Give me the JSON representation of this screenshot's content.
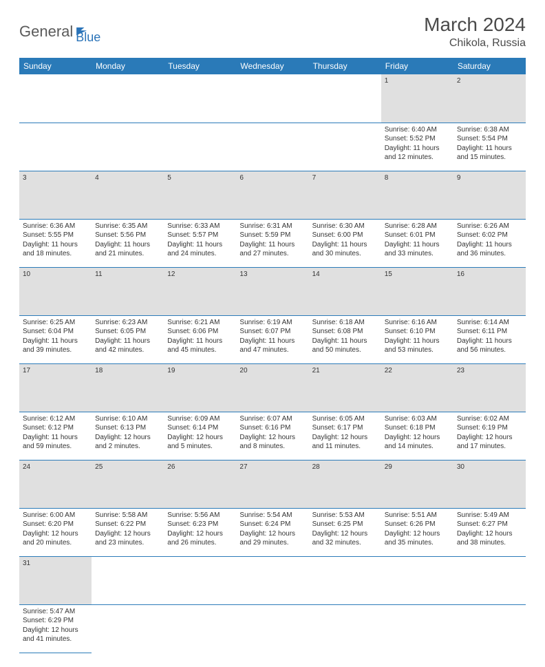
{
  "logo": {
    "text1": "General",
    "text2": "Blue",
    "iconColor": "#2a73b8"
  },
  "header": {
    "title": "March 2024",
    "location": "Chikola, Russia"
  },
  "colors": {
    "headerBg": "#2a7ab8",
    "headerText": "#ffffff",
    "dayNumBg": "#e0e0e0",
    "bodyText": "#333333",
    "ruleColor": "#2a7ab8"
  },
  "weekdays": [
    "Sunday",
    "Monday",
    "Tuesday",
    "Wednesday",
    "Thursday",
    "Friday",
    "Saturday"
  ],
  "weeks": [
    [
      null,
      null,
      null,
      null,
      null,
      {
        "n": "1",
        "sunrise": "Sunrise: 6:40 AM",
        "sunset": "Sunset: 5:52 PM",
        "day1": "Daylight: 11 hours",
        "day2": "and 12 minutes."
      },
      {
        "n": "2",
        "sunrise": "Sunrise: 6:38 AM",
        "sunset": "Sunset: 5:54 PM",
        "day1": "Daylight: 11 hours",
        "day2": "and 15 minutes."
      }
    ],
    [
      {
        "n": "3",
        "sunrise": "Sunrise: 6:36 AM",
        "sunset": "Sunset: 5:55 PM",
        "day1": "Daylight: 11 hours",
        "day2": "and 18 minutes."
      },
      {
        "n": "4",
        "sunrise": "Sunrise: 6:35 AM",
        "sunset": "Sunset: 5:56 PM",
        "day1": "Daylight: 11 hours",
        "day2": "and 21 minutes."
      },
      {
        "n": "5",
        "sunrise": "Sunrise: 6:33 AM",
        "sunset": "Sunset: 5:57 PM",
        "day1": "Daylight: 11 hours",
        "day2": "and 24 minutes."
      },
      {
        "n": "6",
        "sunrise": "Sunrise: 6:31 AM",
        "sunset": "Sunset: 5:59 PM",
        "day1": "Daylight: 11 hours",
        "day2": "and 27 minutes."
      },
      {
        "n": "7",
        "sunrise": "Sunrise: 6:30 AM",
        "sunset": "Sunset: 6:00 PM",
        "day1": "Daylight: 11 hours",
        "day2": "and 30 minutes."
      },
      {
        "n": "8",
        "sunrise": "Sunrise: 6:28 AM",
        "sunset": "Sunset: 6:01 PM",
        "day1": "Daylight: 11 hours",
        "day2": "and 33 minutes."
      },
      {
        "n": "9",
        "sunrise": "Sunrise: 6:26 AM",
        "sunset": "Sunset: 6:02 PM",
        "day1": "Daylight: 11 hours",
        "day2": "and 36 minutes."
      }
    ],
    [
      {
        "n": "10",
        "sunrise": "Sunrise: 6:25 AM",
        "sunset": "Sunset: 6:04 PM",
        "day1": "Daylight: 11 hours",
        "day2": "and 39 minutes."
      },
      {
        "n": "11",
        "sunrise": "Sunrise: 6:23 AM",
        "sunset": "Sunset: 6:05 PM",
        "day1": "Daylight: 11 hours",
        "day2": "and 42 minutes."
      },
      {
        "n": "12",
        "sunrise": "Sunrise: 6:21 AM",
        "sunset": "Sunset: 6:06 PM",
        "day1": "Daylight: 11 hours",
        "day2": "and 45 minutes."
      },
      {
        "n": "13",
        "sunrise": "Sunrise: 6:19 AM",
        "sunset": "Sunset: 6:07 PM",
        "day1": "Daylight: 11 hours",
        "day2": "and 47 minutes."
      },
      {
        "n": "14",
        "sunrise": "Sunrise: 6:18 AM",
        "sunset": "Sunset: 6:08 PM",
        "day1": "Daylight: 11 hours",
        "day2": "and 50 minutes."
      },
      {
        "n": "15",
        "sunrise": "Sunrise: 6:16 AM",
        "sunset": "Sunset: 6:10 PM",
        "day1": "Daylight: 11 hours",
        "day2": "and 53 minutes."
      },
      {
        "n": "16",
        "sunrise": "Sunrise: 6:14 AM",
        "sunset": "Sunset: 6:11 PM",
        "day1": "Daylight: 11 hours",
        "day2": "and 56 minutes."
      }
    ],
    [
      {
        "n": "17",
        "sunrise": "Sunrise: 6:12 AM",
        "sunset": "Sunset: 6:12 PM",
        "day1": "Daylight: 11 hours",
        "day2": "and 59 minutes."
      },
      {
        "n": "18",
        "sunrise": "Sunrise: 6:10 AM",
        "sunset": "Sunset: 6:13 PM",
        "day1": "Daylight: 12 hours",
        "day2": "and 2 minutes."
      },
      {
        "n": "19",
        "sunrise": "Sunrise: 6:09 AM",
        "sunset": "Sunset: 6:14 PM",
        "day1": "Daylight: 12 hours",
        "day2": "and 5 minutes."
      },
      {
        "n": "20",
        "sunrise": "Sunrise: 6:07 AM",
        "sunset": "Sunset: 6:16 PM",
        "day1": "Daylight: 12 hours",
        "day2": "and 8 minutes."
      },
      {
        "n": "21",
        "sunrise": "Sunrise: 6:05 AM",
        "sunset": "Sunset: 6:17 PM",
        "day1": "Daylight: 12 hours",
        "day2": "and 11 minutes."
      },
      {
        "n": "22",
        "sunrise": "Sunrise: 6:03 AM",
        "sunset": "Sunset: 6:18 PM",
        "day1": "Daylight: 12 hours",
        "day2": "and 14 minutes."
      },
      {
        "n": "23",
        "sunrise": "Sunrise: 6:02 AM",
        "sunset": "Sunset: 6:19 PM",
        "day1": "Daylight: 12 hours",
        "day2": "and 17 minutes."
      }
    ],
    [
      {
        "n": "24",
        "sunrise": "Sunrise: 6:00 AM",
        "sunset": "Sunset: 6:20 PM",
        "day1": "Daylight: 12 hours",
        "day2": "and 20 minutes."
      },
      {
        "n": "25",
        "sunrise": "Sunrise: 5:58 AM",
        "sunset": "Sunset: 6:22 PM",
        "day1": "Daylight: 12 hours",
        "day2": "and 23 minutes."
      },
      {
        "n": "26",
        "sunrise": "Sunrise: 5:56 AM",
        "sunset": "Sunset: 6:23 PM",
        "day1": "Daylight: 12 hours",
        "day2": "and 26 minutes."
      },
      {
        "n": "27",
        "sunrise": "Sunrise: 5:54 AM",
        "sunset": "Sunset: 6:24 PM",
        "day1": "Daylight: 12 hours",
        "day2": "and 29 minutes."
      },
      {
        "n": "28",
        "sunrise": "Sunrise: 5:53 AM",
        "sunset": "Sunset: 6:25 PM",
        "day1": "Daylight: 12 hours",
        "day2": "and 32 minutes."
      },
      {
        "n": "29",
        "sunrise": "Sunrise: 5:51 AM",
        "sunset": "Sunset: 6:26 PM",
        "day1": "Daylight: 12 hours",
        "day2": "and 35 minutes."
      },
      {
        "n": "30",
        "sunrise": "Sunrise: 5:49 AM",
        "sunset": "Sunset: 6:27 PM",
        "day1": "Daylight: 12 hours",
        "day2": "and 38 minutes."
      }
    ],
    [
      {
        "n": "31",
        "sunrise": "Sunrise: 5:47 AM",
        "sunset": "Sunset: 6:29 PM",
        "day1": "Daylight: 12 hours",
        "day2": "and 41 minutes."
      },
      null,
      null,
      null,
      null,
      null,
      null
    ]
  ]
}
